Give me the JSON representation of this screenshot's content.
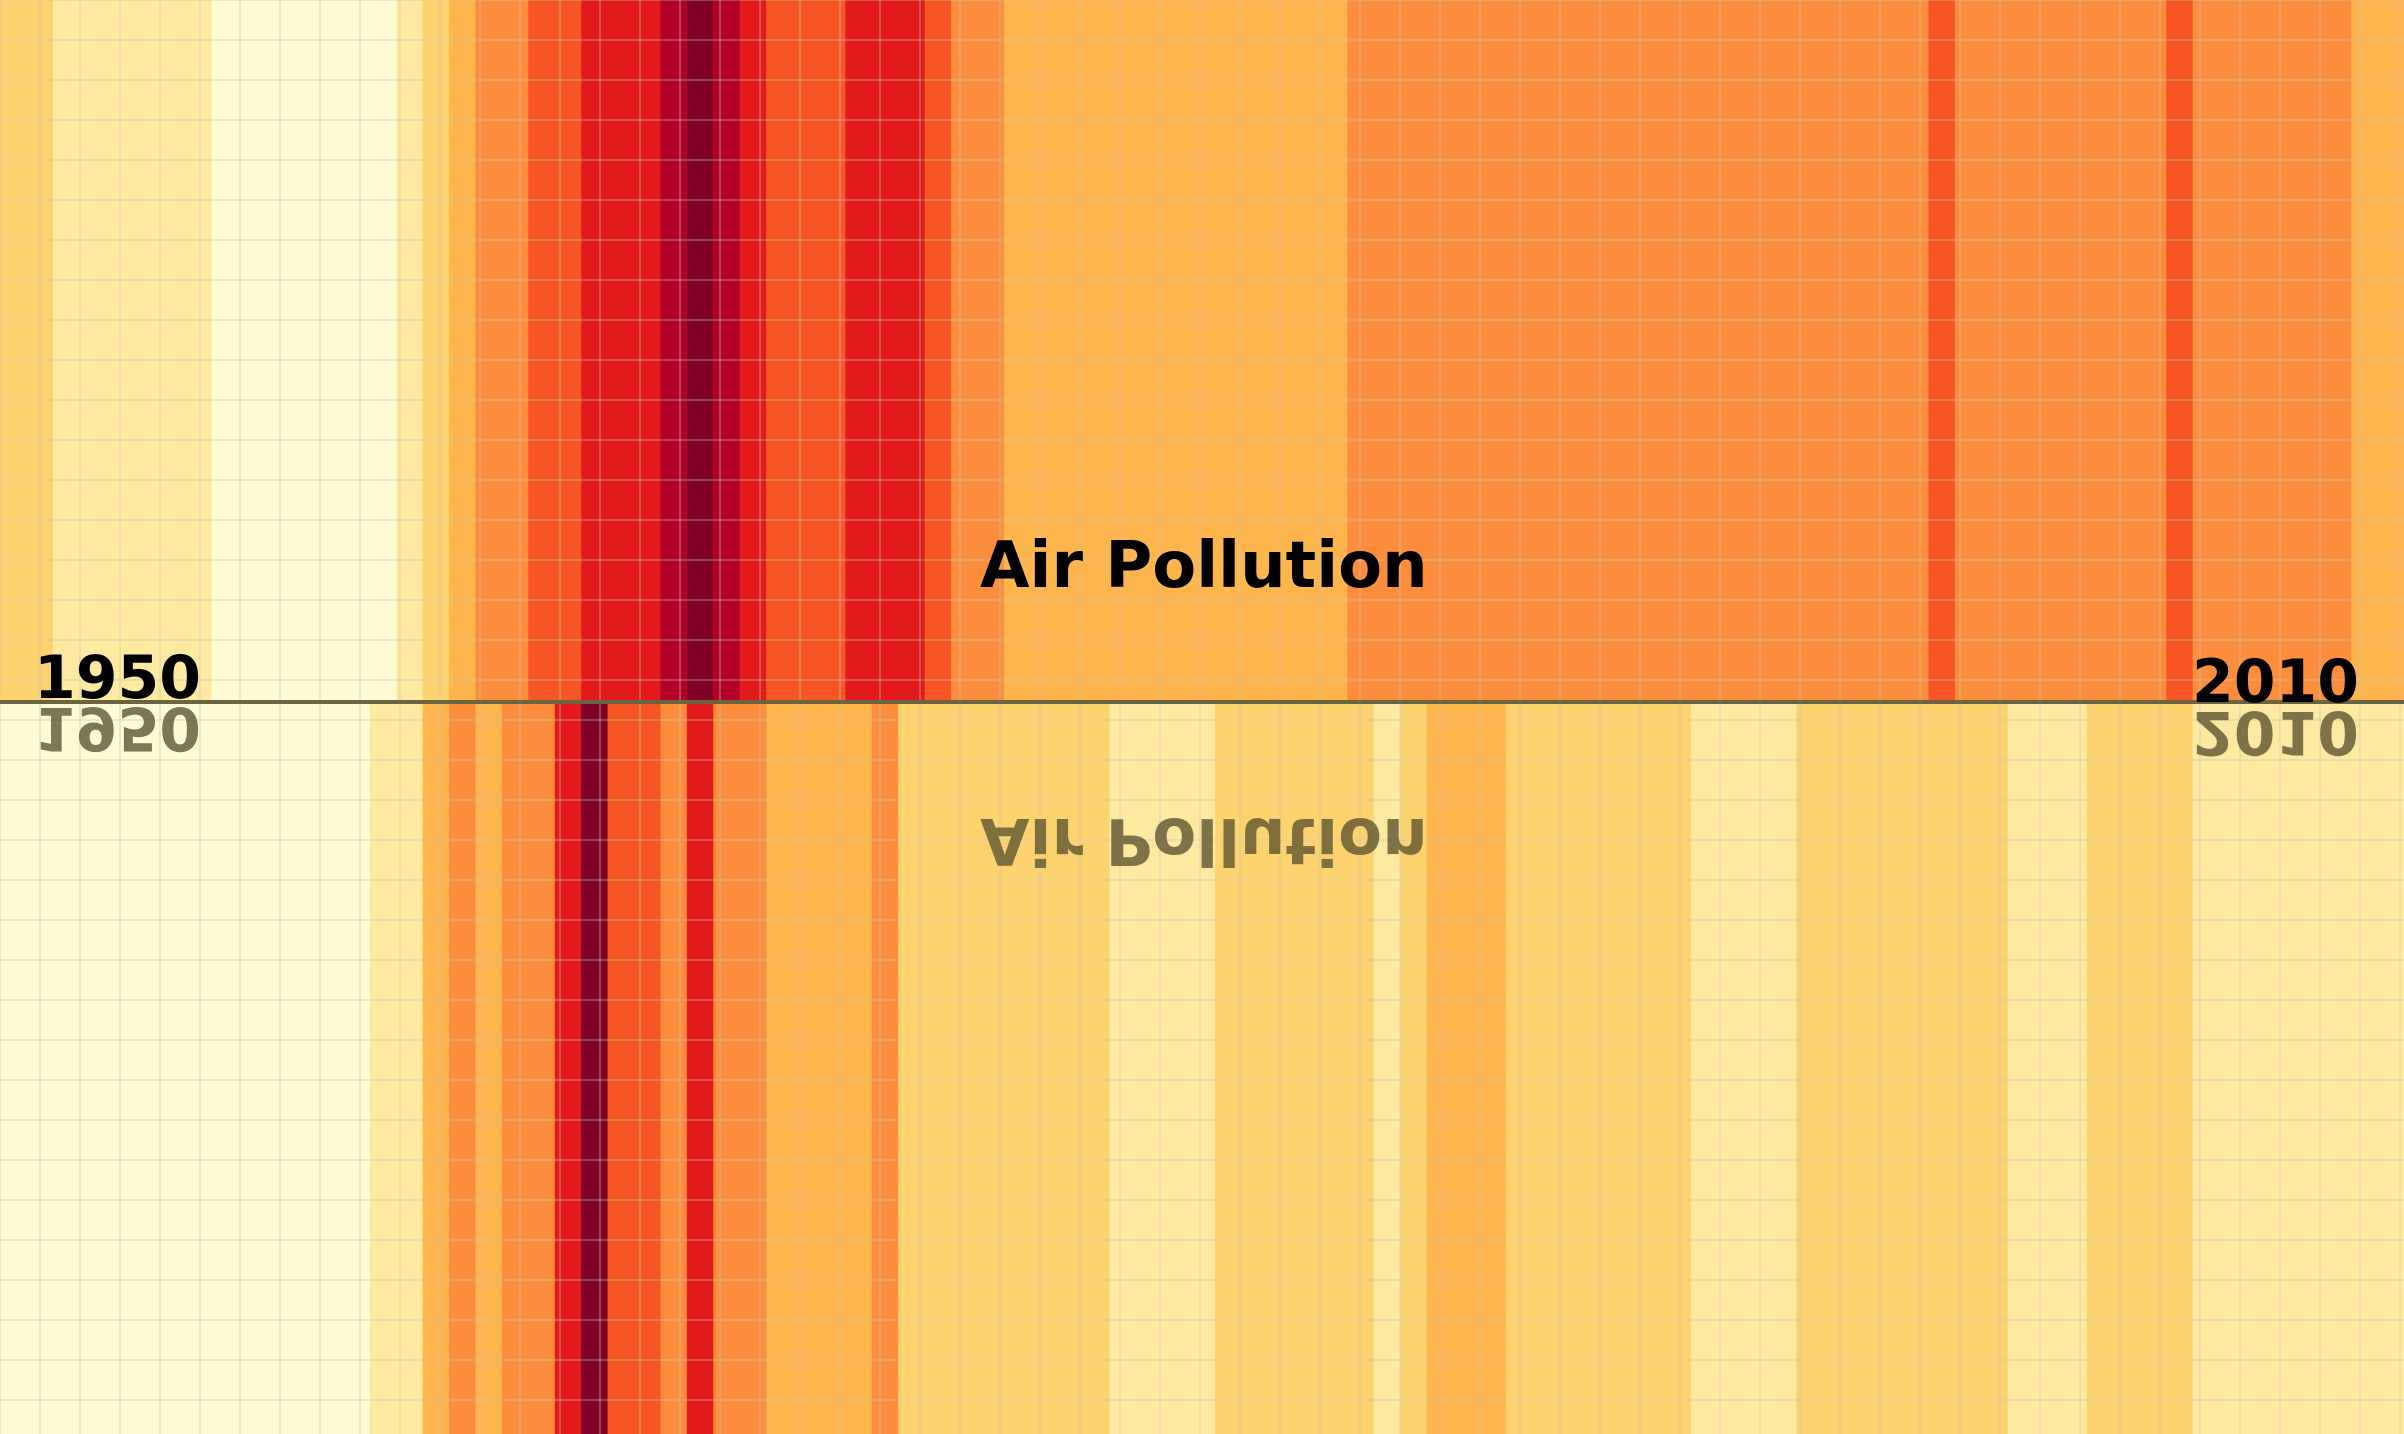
{
  "chart_data": {
    "type": "heatmap",
    "title": "Air Pollution",
    "reflection_title": "Air Pollution",
    "x_start_label": "1950",
    "x_end_label": "2010",
    "x_range": [
      1950,
      2010
    ],
    "grid": true,
    "colors": [
      "#fffbd2",
      "#fee9a0",
      "#fdd36f",
      "#fdb54c",
      "#fb8d3c",
      "#f75524",
      "#e31a1c",
      "#b30026",
      "#800026"
    ],
    "columns_upper": [
      2,
      2,
      1,
      1,
      1,
      1,
      1,
      1,
      0,
      0,
      0,
      0,
      0,
      0,
      0,
      1,
      2,
      3,
      4,
      4,
      5,
      5,
      6,
      6,
      6,
      7,
      8,
      7,
      6,
      5,
      5,
      5,
      6,
      6,
      6,
      5,
      4,
      4,
      3,
      3,
      3,
      3,
      3,
      3,
      3,
      3,
      3,
      3,
      3,
      3,
      3,
      4,
      4,
      4,
      4,
      4,
      4,
      4,
      4,
      4,
      4,
      4,
      4,
      4,
      4,
      4,
      4,
      4,
      4,
      4,
      4,
      4,
      4,
      5,
      4,
      4,
      4,
      4,
      4,
      4,
      4,
      4,
      5,
      4,
      4,
      4,
      4,
      4,
      4,
      3,
      3
    ],
    "columns_lower": [
      0,
      0,
      0,
      0,
      0,
      0,
      0,
      0,
      0,
      0,
      0,
      0,
      0,
      0,
      1,
      1,
      3,
      4,
      3,
      4,
      4,
      6,
      8,
      5,
      5,
      4,
      6,
      4,
      4,
      3,
      3,
      3,
      3,
      4,
      2,
      2,
      2,
      2,
      2,
      2,
      2,
      2,
      1,
      1,
      1,
      1,
      2,
      2,
      2,
      2,
      2,
      2,
      1,
      2,
      3,
      3,
      3,
      2,
      2,
      2,
      2,
      2,
      2,
      2,
      1,
      1,
      1,
      1,
      2,
      2,
      2,
      2,
      2,
      2,
      2,
      2,
      1,
      1,
      1,
      2,
      2,
      2,
      2,
      1,
      1,
      1,
      1,
      1,
      1,
      1,
      1
    ]
  }
}
